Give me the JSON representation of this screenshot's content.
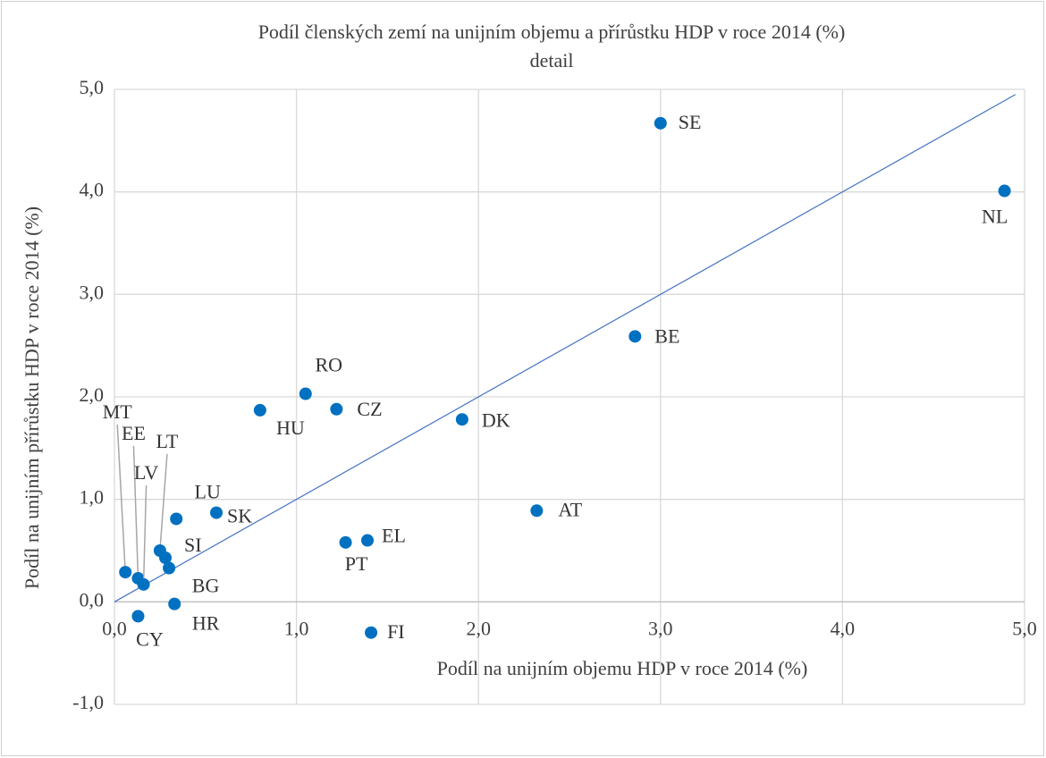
{
  "chart_data": {
    "type": "scatter",
    "title": "Podíl členských zemí na unijním objemu a přírůstku HDP v roce 2014 (%)",
    "subtitle": "detail",
    "xlabel": "Podíl na unijním objemu HDP v roce 2014 (%)",
    "ylabel": "Podíl na unijním přírůstku HDP v roce 2014 (%)",
    "categories": [
      "MT",
      "EE",
      "LV",
      "LT",
      "SI",
      "BG",
      "HR",
      "CY",
      "LU",
      "SK",
      "HU",
      "RO",
      "CZ",
      "PT",
      "EL",
      "FI",
      "DK",
      "AT",
      "BE",
      "SE",
      "NL"
    ],
    "x": [
      0.06,
      0.13,
      0.16,
      0.25,
      0.28,
      0.3,
      0.33,
      0.13,
      0.34,
      0.56,
      0.8,
      1.05,
      1.22,
      1.27,
      1.39,
      1.41,
      1.91,
      2.32,
      2.86,
      3.0,
      4.89
    ],
    "values": [
      0.29,
      0.23,
      0.17,
      0.5,
      0.43,
      0.33,
      -0.02,
      -0.14,
      0.81,
      0.87,
      1.87,
      2.03,
      1.88,
      0.58,
      0.6,
      -0.3,
      1.78,
      0.89,
      2.59,
      4.67,
      4.01
    ],
    "color": "#0070c0",
    "reference_line": {
      "x": [
        0,
        4.95
      ],
      "y": [
        0,
        4.95
      ],
      "color": "#4472c4"
    },
    "xlim": [
      0,
      5
    ],
    "ylim": [
      -1,
      5
    ],
    "xticks": [
      {
        "value": 0,
        "label": "0,0"
      },
      {
        "value": 1,
        "label": "1,0"
      },
      {
        "value": 2,
        "label": "2,0"
      },
      {
        "value": 3,
        "label": "3,0"
      },
      {
        "value": 4,
        "label": "4,0"
      },
      {
        "value": 5,
        "label": "5,0"
      }
    ],
    "yticks": [
      {
        "value": -1,
        "label": "-1,0"
      },
      {
        "value": 0,
        "label": "0,0"
      },
      {
        "value": 1,
        "label": "1,0"
      },
      {
        "value": 2,
        "label": "2,0"
      },
      {
        "value": 3,
        "label": "3,0"
      },
      {
        "value": 4,
        "label": "4,0"
      },
      {
        "value": 5,
        "label": "5,0"
      }
    ],
    "grid": true
  }
}
